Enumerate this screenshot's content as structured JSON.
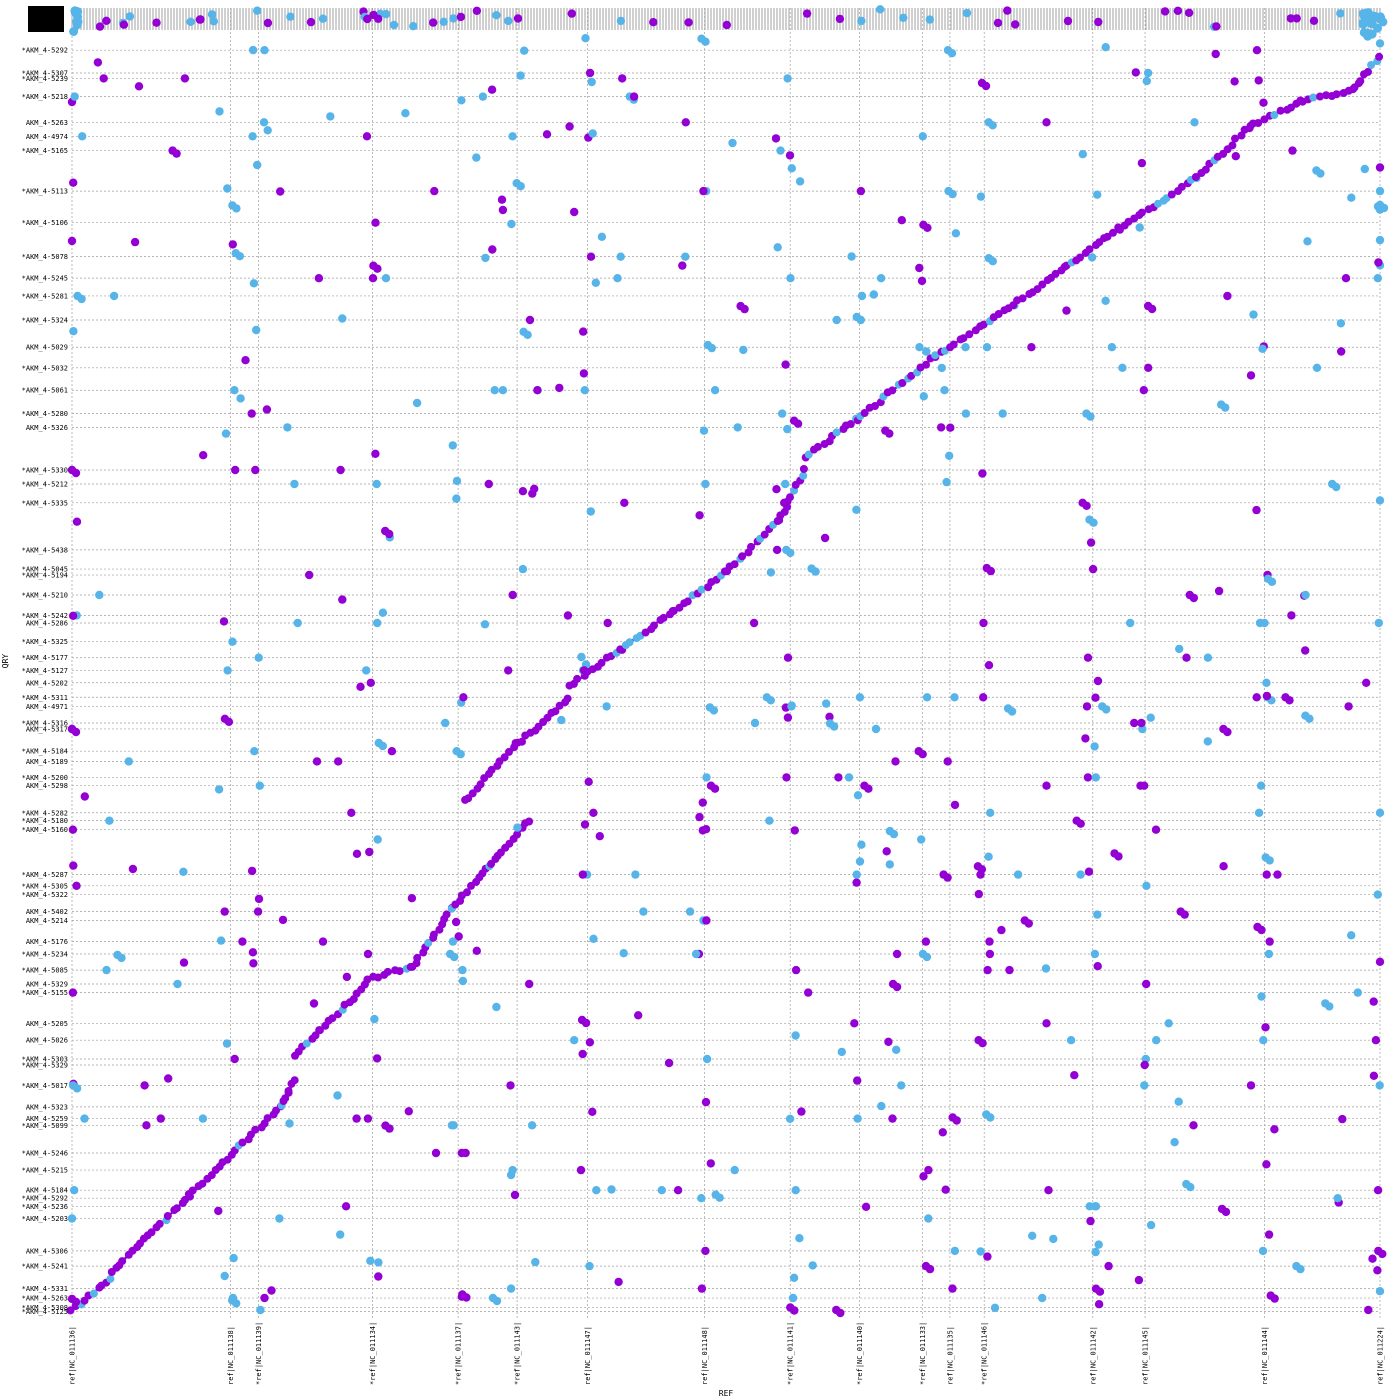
{
  "chart_data": {
    "type": "scatter",
    "title": "",
    "xlabel": "REF",
    "ylabel": "QRY",
    "xlim": [
      0,
      1
    ],
    "ylim": [
      0,
      1
    ],
    "grid": true,
    "colors": {
      "forward": "#9400d3",
      "reverse": "#56b4e9",
      "grid": "#9e9e9e"
    },
    "x_ticks": [
      {
        "label": "ref|NC_011136|",
        "pos": 0.0
      },
      {
        "label": "ref|NC_011138|",
        "pos": 0.1212
      },
      {
        "label": "*ref|NC_011139|",
        "pos": 0.1425
      },
      {
        "label": "*ref|NC_011134|",
        "pos": 0.2298
      },
      {
        "label": "*ref|NC_011137|",
        "pos": 0.2952
      },
      {
        "label": "*ref|NC_011143|",
        "pos": 0.3403
      },
      {
        "label": "ref|NC_011147|",
        "pos": 0.3941
      },
      {
        "label": "ref|NC_011148|",
        "pos": 0.4836
      },
      {
        "label": "*ref|NC_011141|",
        "pos": 0.5491
      },
      {
        "label": "*ref|NC_011140|",
        "pos": 0.6021
      },
      {
        "label": "*ref|NC_011133|",
        "pos": 0.6501
      },
      {
        "label": "ref|NC_011135|",
        "pos": 0.6712
      },
      {
        "label": "*ref|NC_011146|",
        "pos": 0.6974
      },
      {
        "label": "ref|NC_011142|",
        "pos": 0.7804
      },
      {
        "label": "ref|NC_011145|",
        "pos": 0.8204
      },
      {
        "label": "ref|NC_011144|",
        "pos": 0.9117
      },
      {
        "label": "ref|NC_011224|",
        "pos": 1.0
      }
    ],
    "y_ticks": [
      {
        "label": "*AKM_4-5292",
        "pos": 0.9904
      },
      {
        "label": "*AKM_4-5307",
        "pos": 0.9725
      },
      {
        "label": "*AKM_4-5239",
        "pos": 0.9682
      },
      {
        "label": "*AKM_4-5218",
        "pos": 0.9539
      },
      {
        "label": "AKM_4-5263",
        "pos": 0.9337
      },
      {
        "label": "AKM_4-4974",
        "pos": 0.9227
      },
      {
        "label": "*AKM_4-5165",
        "pos": 0.9115
      },
      {
        "label": "*AKM_4-5113",
        "pos": 0.8796
      },
      {
        "label": "*AKM_4-5106",
        "pos": 0.8548
      },
      {
        "label": "*AKM_4-5078",
        "pos": 0.8281
      },
      {
        "label": "*AKM_4-5245",
        "pos": 0.8112
      },
      {
        "label": "*AKM_4-5281",
        "pos": 0.7972
      },
      {
        "label": "*AKM_4-5324",
        "pos": 0.7783
      },
      {
        "label": "AKM_4-5029",
        "pos": 0.7569
      },
      {
        "label": "*AKM_4-5032",
        "pos": 0.7407
      },
      {
        "label": "*AKM_4-5061",
        "pos": 0.7231
      },
      {
        "label": "*AKM_4-5280",
        "pos": 0.7047
      },
      {
        "label": "AKM_4-5326",
        "pos": 0.6939
      },
      {
        "label": "*AKM_4-5330",
        "pos": 0.6604
      },
      {
        "label": "*AKM_4-5212",
        "pos": 0.6494
      },
      {
        "label": "*AKM_4-5335",
        "pos": 0.6346
      },
      {
        "label": "*AKM_4-5438",
        "pos": 0.5976
      },
      {
        "label": "*AKM_4-5045",
        "pos": 0.5825
      },
      {
        "label": "*AKM_4-5194",
        "pos": 0.5778
      },
      {
        "label": "*AKM_4-5210",
        "pos": 0.5621
      },
      {
        "label": "*AKM_4-5242",
        "pos": 0.5461
      },
      {
        "label": "AKM_4-5286",
        "pos": 0.5401
      },
      {
        "label": "*AKM_4-5325",
        "pos": 0.5254
      },
      {
        "label": "*AKM_4-5177",
        "pos": 0.5128
      },
      {
        "label": "*AKM_4-5127",
        "pos": 0.5028
      },
      {
        "label": "AKM_4-5202",
        "pos": 0.4931
      },
      {
        "label": "*AKM_4-5311",
        "pos": 0.4817
      },
      {
        "label": "AKM_4-4971",
        "pos": 0.4745
      },
      {
        "label": "*AKM_4-5316",
        "pos": 0.4615
      },
      {
        "label": "AKM_4-5317",
        "pos": 0.4568
      },
      {
        "label": "*AKM_4-5184",
        "pos": 0.4393
      },
      {
        "label": "AKM_4-5189",
        "pos": 0.4313
      },
      {
        "label": "*AKM_4-5200",
        "pos": 0.4187
      },
      {
        "label": "AKM_4-5298",
        "pos": 0.4122
      },
      {
        "label": "*AKM_4-5282",
        "pos": 0.3909
      },
      {
        "label": "*AKM_4-5180",
        "pos": 0.3847
      },
      {
        "label": "*AKM_4-5160",
        "pos": 0.3776
      },
      {
        "label": "*AKM_4-5287",
        "pos": 0.3423
      },
      {
        "label": "*AKM_4-5305",
        "pos": 0.3335
      },
      {
        "label": "*AKM_4-5322",
        "pos": 0.3266
      },
      {
        "label": "AKM_4-5402",
        "pos": 0.3132
      },
      {
        "label": "AKM_4-5214",
        "pos": 0.3062
      },
      {
        "label": "AKM_4-5176",
        "pos": 0.2896
      },
      {
        "label": "*AKM_4-5234",
        "pos": 0.2799
      },
      {
        "label": "*AKM_4-5085",
        "pos": 0.2672
      },
      {
        "label": "AKM_4-5329",
        "pos": 0.2563
      },
      {
        "label": "*AKM_4-5155",
        "pos": 0.2495
      },
      {
        "label": "AKM_4-5205",
        "pos": 0.2254
      },
      {
        "label": "AKM_4-5026",
        "pos": 0.2121
      },
      {
        "label": "*AKM_4-5303",
        "pos": 0.1973
      },
      {
        "label": "*AKM_4-5329",
        "pos": 0.1926
      },
      {
        "label": "*AKM_4-5017",
        "pos": 0.1766
      },
      {
        "label": "AKM_4-5323",
        "pos": 0.1597
      },
      {
        "label": "AKM_4-5259",
        "pos": 0.1505
      },
      {
        "label": "*AKM_4-5099",
        "pos": 0.1452
      },
      {
        "label": "*AKM_4-5246",
        "pos": 0.1234
      },
      {
        "label": "*AKM_4-5215",
        "pos": 0.11
      },
      {
        "label": "AKM_4-5184",
        "pos": 0.0942
      },
      {
        "label": "*AKM_4-5292",
        "pos": 0.0879
      },
      {
        "label": "*AKM_4-5236",
        "pos": 0.0815
      },
      {
        "label": "*AKM_4-5203",
        "pos": 0.0719
      },
      {
        "label": "AKM_4-5306",
        "pos": 0.0465
      },
      {
        "label": "*AKM_4-5241",
        "pos": 0.0345
      },
      {
        "label": "*AKM_4-5331",
        "pos": 0.0168
      },
      {
        "label": "*AKM_4-5263",
        "pos": 0.0094
      },
      {
        "label": "*AKM_4-5308",
        "pos": 0.002
      },
      {
        "label": "*AKM_4-5125",
        "pos": -0.0012
      }
    ],
    "diagonal_segments": [
      [
        0.0,
        0.0,
        0.03,
        0.025
      ],
      [
        0.03,
        0.03,
        0.09,
        0.09
      ],
      [
        0.09,
        0.09,
        0.16,
        0.16
      ],
      [
        0.16,
        0.16,
        0.17,
        0.18
      ],
      [
        0.17,
        0.2,
        0.19,
        0.22
      ],
      [
        0.19,
        0.22,
        0.225,
        0.255
      ],
      [
        0.225,
        0.26,
        0.26,
        0.27
      ],
      [
        0.26,
        0.27,
        0.29,
        0.315
      ],
      [
        0.29,
        0.315,
        0.32,
        0.35
      ],
      [
        0.32,
        0.35,
        0.35,
        0.385
      ],
      [
        0.3,
        0.4,
        0.34,
        0.445
      ],
      [
        0.34,
        0.445,
        0.38,
        0.48
      ],
      [
        0.38,
        0.49,
        0.42,
        0.52
      ],
      [
        0.42,
        0.52,
        0.46,
        0.55
      ],
      [
        0.46,
        0.55,
        0.5,
        0.58
      ],
      [
        0.5,
        0.58,
        0.54,
        0.62
      ],
      [
        0.54,
        0.62,
        0.56,
        0.66
      ],
      [
        0.56,
        0.67,
        0.6,
        0.7
      ],
      [
        0.6,
        0.7,
        0.66,
        0.75
      ],
      [
        0.66,
        0.75,
        0.72,
        0.79
      ],
      [
        0.72,
        0.79,
        0.76,
        0.82
      ],
      [
        0.76,
        0.82,
        0.8,
        0.85
      ],
      [
        0.8,
        0.85,
        0.86,
        0.89
      ],
      [
        0.86,
        0.89,
        0.9,
        0.93
      ],
      [
        0.9,
        0.93,
        0.94,
        0.95
      ],
      [
        0.94,
        0.95,
        0.98,
        0.96
      ],
      [
        0.98,
        0.96,
        1.0,
        0.985
      ]
    ],
    "scatter_seed": 271,
    "scatter_count": 620
  }
}
